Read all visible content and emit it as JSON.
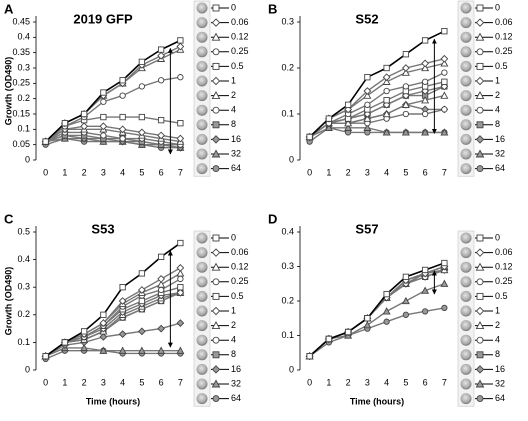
{
  "chart_data": [
    {
      "type": "line",
      "panel": "A",
      "title": "2019 GFP",
      "ylabel": "Growth (OD490)",
      "x": [
        0,
        1,
        2,
        3,
        4,
        5,
        6,
        7
      ],
      "xlim": [
        -0.5,
        7.5
      ],
      "xticks": [
        0,
        1,
        2,
        3,
        4,
        5,
        6,
        7
      ],
      "ylim": [
        0,
        0.45
      ],
      "yticks": [
        0,
        0.05,
        0.1,
        0.15,
        0.2,
        0.25,
        0.3,
        0.35,
        0.4,
        0.45
      ],
      "series": [
        {
          "name": "0",
          "color": "#000000",
          "fill": "#ffffff",
          "marker": "square",
          "values": [
            0.06,
            0.12,
            0.15,
            0.22,
            0.26,
            0.32,
            0.36,
            0.39
          ]
        },
        {
          "name": "0.06",
          "color": "#777777",
          "fill": "#ffffff",
          "marker": "diamond",
          "values": [
            0.06,
            0.12,
            0.15,
            0.21,
            0.25,
            0.31,
            0.34,
            0.37
          ]
        },
        {
          "name": "0.12",
          "color": "#777777",
          "fill": "#ffffff",
          "marker": "triangle",
          "values": [
            0.06,
            0.12,
            0.15,
            0.21,
            0.25,
            0.3,
            0.33,
            0.36
          ]
        },
        {
          "name": "0.25",
          "color": "#777777",
          "fill": "#ffffff",
          "marker": "circle",
          "values": [
            0.06,
            0.11,
            0.14,
            0.19,
            0.21,
            0.24,
            0.26,
            0.27
          ]
        },
        {
          "name": "0.5",
          "color": "#777777",
          "fill": "#ffffff",
          "marker": "square",
          "values": [
            0.06,
            0.11,
            0.13,
            0.14,
            0.14,
            0.14,
            0.13,
            0.12
          ]
        },
        {
          "name": "1",
          "color": "#777777",
          "fill": "#ffffff",
          "marker": "diamond",
          "values": [
            0.06,
            0.1,
            0.11,
            0.11,
            0.1,
            0.09,
            0.08,
            0.07
          ]
        },
        {
          "name": "2",
          "color": "#777777",
          "fill": "#ffffff",
          "marker": "triangle",
          "values": [
            0.06,
            0.1,
            0.1,
            0.1,
            0.09,
            0.08,
            0.07,
            0.06
          ]
        },
        {
          "name": "4",
          "color": "#777777",
          "fill": "#ffffff",
          "marker": "circle",
          "values": [
            0.06,
            0.09,
            0.09,
            0.08,
            0.07,
            0.07,
            0.06,
            0.05
          ]
        },
        {
          "name": "8",
          "color": "#777777",
          "fill": "#999999",
          "marker": "square",
          "values": [
            0.06,
            0.08,
            0.08,
            0.07,
            0.07,
            0.06,
            0.05,
            0.05
          ]
        },
        {
          "name": "16",
          "color": "#777777",
          "fill": "#999999",
          "marker": "diamond",
          "values": [
            0.06,
            0.08,
            0.07,
            0.07,
            0.06,
            0.06,
            0.05,
            0.04
          ]
        },
        {
          "name": "32",
          "color": "#777777",
          "fill": "#999999",
          "marker": "triangle",
          "values": [
            0.06,
            0.07,
            0.07,
            0.06,
            0.06,
            0.05,
            0.05,
            0.04
          ]
        },
        {
          "name": "64",
          "color": "#777777",
          "fill": "#999999",
          "marker": "circle",
          "values": [
            0.05,
            0.07,
            0.06,
            0.06,
            0.06,
            0.05,
            0.04,
            0.04
          ]
        }
      ]
    },
    {
      "type": "line",
      "panel": "B",
      "title": "S52",
      "x": [
        0,
        1,
        2,
        3,
        4,
        5,
        6,
        7
      ],
      "xlim": [
        -0.5,
        7.5
      ],
      "xticks": [
        0,
        1,
        2,
        3,
        4,
        5,
        6,
        7
      ],
      "ylim": [
        0,
        0.3
      ],
      "yticks": [
        0,
        0.1,
        0.2,
        0.3
      ],
      "series": [
        {
          "name": "0",
          "color": "#000000",
          "fill": "#ffffff",
          "marker": "square",
          "values": [
            0.05,
            0.09,
            0.12,
            0.18,
            0.2,
            0.23,
            0.26,
            0.28
          ]
        },
        {
          "name": "0.06",
          "color": "#777777",
          "fill": "#ffffff",
          "marker": "diamond",
          "values": [
            0.05,
            0.09,
            0.11,
            0.15,
            0.18,
            0.2,
            0.21,
            0.22
          ]
        },
        {
          "name": "0.12",
          "color": "#777777",
          "fill": "#ffffff",
          "marker": "triangle",
          "values": [
            0.05,
            0.09,
            0.11,
            0.14,
            0.17,
            0.19,
            0.2,
            0.21
          ]
        },
        {
          "name": "0.25",
          "color": "#777777",
          "fill": "#ffffff",
          "marker": "circle",
          "values": [
            0.05,
            0.08,
            0.1,
            0.12,
            0.15,
            0.16,
            0.17,
            0.19
          ]
        },
        {
          "name": "0.5",
          "color": "#777777",
          "fill": "#ffffff",
          "marker": "square",
          "values": [
            0.05,
            0.08,
            0.09,
            0.11,
            0.13,
            0.15,
            0.16,
            0.17
          ]
        },
        {
          "name": "1",
          "color": "#777777",
          "fill": "#ffffff",
          "marker": "diamond",
          "values": [
            0.05,
            0.08,
            0.09,
            0.1,
            0.12,
            0.14,
            0.15,
            0.16
          ]
        },
        {
          "name": "2",
          "color": "#777777",
          "fill": "#ffffff",
          "marker": "triangle",
          "values": [
            0.05,
            0.08,
            0.08,
            0.09,
            0.1,
            0.12,
            0.13,
            0.14
          ]
        },
        {
          "name": "4",
          "color": "#777777",
          "fill": "#ffffff",
          "marker": "circle",
          "values": [
            0.05,
            0.08,
            0.08,
            0.08,
            0.09,
            0.1,
            0.1,
            0.11
          ]
        },
        {
          "name": "8",
          "color": "#777777",
          "fill": "#999999",
          "marker": "square",
          "values": [
            0.05,
            0.08,
            0.09,
            0.1,
            0.12,
            0.14,
            0.14,
            0.16
          ]
        },
        {
          "name": "16",
          "color": "#777777",
          "fill": "#999999",
          "marker": "diamond",
          "values": [
            0.05,
            0.08,
            0.08,
            0.09,
            0.1,
            0.12,
            0.11,
            0.11
          ]
        },
        {
          "name": "32",
          "color": "#777777",
          "fill": "#999999",
          "marker": "triangle",
          "values": [
            0.05,
            0.07,
            0.07,
            0.07,
            0.06,
            0.06,
            0.06,
            0.06
          ]
        },
        {
          "name": "64",
          "color": "#777777",
          "fill": "#999999",
          "marker": "circle",
          "values": [
            0.04,
            0.07,
            0.06,
            0.06,
            0.06,
            0.06,
            0.06,
            0.06
          ]
        }
      ]
    },
    {
      "type": "line",
      "panel": "C",
      "title": "S53",
      "ylabel": "Growth (OD490)",
      "xlabel": "Time (hours)",
      "x": [
        0,
        1,
        2,
        3,
        4,
        5,
        6,
        7
      ],
      "xlim": [
        -0.5,
        7.5
      ],
      "xticks": [
        0,
        1,
        2,
        3,
        4,
        5,
        6,
        7
      ],
      "ylim": [
        0,
        0.5
      ],
      "yticks": [
        0,
        0.1,
        0.2,
        0.3,
        0.4,
        0.5
      ],
      "series": [
        {
          "name": "0",
          "color": "#000000",
          "fill": "#ffffff",
          "marker": "square",
          "values": [
            0.05,
            0.1,
            0.14,
            0.2,
            0.3,
            0.35,
            0.41,
            0.46
          ]
        },
        {
          "name": "0.06",
          "color": "#777777",
          "fill": "#ffffff",
          "marker": "diamond",
          "values": [
            0.05,
            0.1,
            0.13,
            0.17,
            0.25,
            0.29,
            0.33,
            0.37
          ]
        },
        {
          "name": "0.12",
          "color": "#777777",
          "fill": "#ffffff",
          "marker": "triangle",
          "values": [
            0.05,
            0.1,
            0.13,
            0.17,
            0.24,
            0.28,
            0.31,
            0.35
          ]
        },
        {
          "name": "0.25",
          "color": "#777777",
          "fill": "#ffffff",
          "marker": "circle",
          "values": [
            0.05,
            0.1,
            0.12,
            0.16,
            0.23,
            0.27,
            0.29,
            0.33
          ]
        },
        {
          "name": "0.5",
          "color": "#777777",
          "fill": "#ffffff",
          "marker": "square",
          "values": [
            0.05,
            0.1,
            0.12,
            0.16,
            0.22,
            0.25,
            0.28,
            0.3
          ]
        },
        {
          "name": "1",
          "color": "#777777",
          "fill": "#ffffff",
          "marker": "diamond",
          "values": [
            0.05,
            0.1,
            0.12,
            0.15,
            0.21,
            0.24,
            0.27,
            0.28
          ]
        },
        {
          "name": "2",
          "color": "#777777",
          "fill": "#ffffff",
          "marker": "triangle",
          "values": [
            0.05,
            0.1,
            0.11,
            0.14,
            0.2,
            0.23,
            0.26,
            0.28
          ]
        },
        {
          "name": "4",
          "color": "#777777",
          "fill": "#ffffff",
          "marker": "circle",
          "values": [
            0.05,
            0.1,
            0.11,
            0.14,
            0.19,
            0.22,
            0.25,
            0.28
          ]
        },
        {
          "name": "8",
          "color": "#777777",
          "fill": "#999999",
          "marker": "square",
          "values": [
            0.05,
            0.1,
            0.11,
            0.14,
            0.19,
            0.22,
            0.25,
            0.28
          ]
        },
        {
          "name": "16",
          "color": "#777777",
          "fill": "#999999",
          "marker": "diamond",
          "values": [
            0.05,
            0.09,
            0.1,
            0.12,
            0.13,
            0.14,
            0.15,
            0.17
          ]
        },
        {
          "name": "32",
          "color": "#777777",
          "fill": "#999999",
          "marker": "triangle",
          "values": [
            0.05,
            0.08,
            0.08,
            0.07,
            0.07,
            0.07,
            0.07,
            0.07
          ]
        },
        {
          "name": "64",
          "color": "#777777",
          "fill": "#999999",
          "marker": "circle",
          "values": [
            0.04,
            0.07,
            0.07,
            0.07,
            0.06,
            0.06,
            0.06,
            0.06
          ]
        }
      ]
    },
    {
      "type": "line",
      "panel": "D",
      "title": "S57",
      "xlabel": "Time (hours)",
      "x": [
        0,
        1,
        2,
        3,
        4,
        5,
        6,
        7
      ],
      "xlim": [
        -0.5,
        7.5
      ],
      "xticks": [
        0,
        1,
        2,
        3,
        4,
        5,
        6,
        7
      ],
      "ylim": [
        0,
        0.4
      ],
      "yticks": [
        0,
        0.1,
        0.2,
        0.3,
        0.4
      ],
      "series": [
        {
          "name": "0",
          "color": "#000000",
          "fill": "#ffffff",
          "marker": "square",
          "values": [
            0.04,
            0.09,
            0.11,
            0.15,
            0.22,
            0.27,
            0.29,
            0.31
          ]
        },
        {
          "name": "0.06",
          "color": "#777777",
          "fill": "#ffffff",
          "marker": "diamond",
          "values": [
            0.04,
            0.09,
            0.11,
            0.15,
            0.21,
            0.26,
            0.28,
            0.3
          ]
        },
        {
          "name": "0.12",
          "color": "#777777",
          "fill": "#ffffff",
          "marker": "triangle",
          "values": [
            0.04,
            0.09,
            0.11,
            0.15,
            0.21,
            0.26,
            0.28,
            0.3
          ]
        },
        {
          "name": "0.25",
          "color": "#777777",
          "fill": "#ffffff",
          "marker": "circle",
          "values": [
            0.04,
            0.09,
            0.11,
            0.15,
            0.21,
            0.26,
            0.28,
            0.3
          ]
        },
        {
          "name": "0.5",
          "color": "#777777",
          "fill": "#ffffff",
          "marker": "square",
          "values": [
            0.04,
            0.09,
            0.11,
            0.15,
            0.21,
            0.26,
            0.28,
            0.3
          ]
        },
        {
          "name": "1",
          "color": "#777777",
          "fill": "#ffffff",
          "marker": "diamond",
          "values": [
            0.04,
            0.09,
            0.11,
            0.15,
            0.21,
            0.25,
            0.28,
            0.3
          ]
        },
        {
          "name": "2",
          "color": "#777777",
          "fill": "#ffffff",
          "marker": "triangle",
          "values": [
            0.04,
            0.09,
            0.11,
            0.15,
            0.21,
            0.25,
            0.28,
            0.29
          ]
        },
        {
          "name": "4",
          "color": "#777777",
          "fill": "#ffffff",
          "marker": "circle",
          "values": [
            0.04,
            0.09,
            0.11,
            0.15,
            0.21,
            0.25,
            0.27,
            0.29
          ]
        },
        {
          "name": "8",
          "color": "#777777",
          "fill": "#999999",
          "marker": "square",
          "values": [
            0.04,
            0.09,
            0.11,
            0.15,
            0.21,
            0.25,
            0.27,
            0.29
          ]
        },
        {
          "name": "16",
          "color": "#777777",
          "fill": "#999999",
          "marker": "diamond",
          "values": [
            0.04,
            0.09,
            0.11,
            0.15,
            0.21,
            0.25,
            0.27,
            0.29
          ]
        },
        {
          "name": "32",
          "color": "#777777",
          "fill": "#999999",
          "marker": "triangle",
          "values": [
            0.04,
            0.09,
            0.1,
            0.13,
            0.17,
            0.2,
            0.23,
            0.25
          ]
        },
        {
          "name": "64",
          "color": "#777777",
          "fill": "#999999",
          "marker": "circle",
          "values": [
            0.04,
            0.08,
            0.1,
            0.12,
            0.14,
            0.16,
            0.17,
            0.18
          ]
        }
      ]
    }
  ]
}
